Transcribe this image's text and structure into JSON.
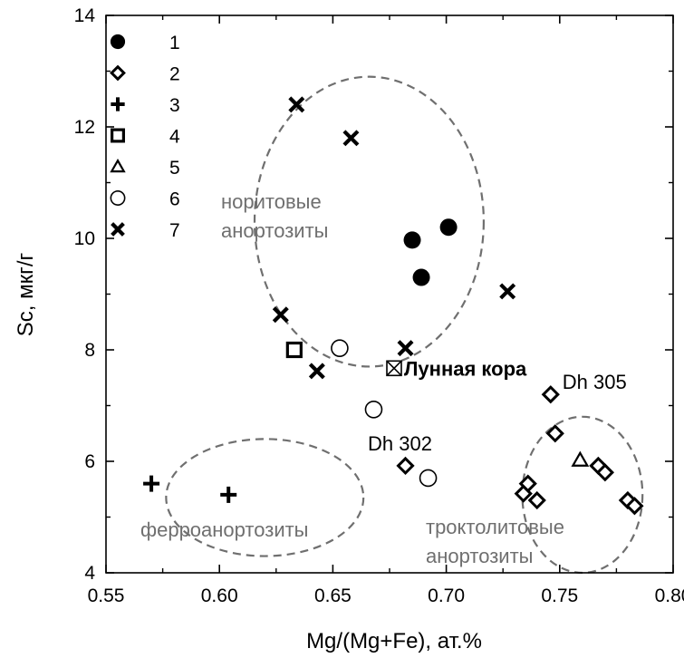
{
  "chart_data": {
    "type": "scatter",
    "xlabel": "Mg/(Mg+Fe), ат.%",
    "ylabel": "Sc, мкг/г",
    "xlim": [
      0.55,
      0.8
    ],
    "ylim": [
      4,
      14
    ],
    "xticks": [
      "0.55",
      "0.60",
      "0.65",
      "0.70",
      "0.75",
      "0.80"
    ],
    "yticks": [
      "4",
      "6",
      "8",
      "10",
      "12",
      "14"
    ],
    "grid": false,
    "legend_position": "top-left",
    "series": [
      {
        "name": "1",
        "marker": "filled-circle",
        "points": [
          [
            0.685,
            9.97
          ],
          [
            0.701,
            10.2
          ],
          [
            0.689,
            9.3
          ]
        ]
      },
      {
        "name": "2",
        "marker": "diamond",
        "points": [
          [
            0.746,
            7.2
          ],
          [
            0.748,
            6.5
          ],
          [
            0.682,
            5.92
          ],
          [
            0.736,
            5.6
          ],
          [
            0.734,
            5.42
          ],
          [
            0.74,
            5.3
          ],
          [
            0.767,
            5.92
          ],
          [
            0.77,
            5.8
          ],
          [
            0.78,
            5.3
          ],
          [
            0.783,
            5.2
          ]
        ]
      },
      {
        "name": "3",
        "marker": "plus",
        "points": [
          [
            0.57,
            5.6
          ],
          [
            0.604,
            5.4
          ]
        ]
      },
      {
        "name": "4",
        "marker": "square",
        "points": [
          [
            0.633,
            8.0
          ]
        ]
      },
      {
        "name": "5",
        "marker": "triangle",
        "points": [
          [
            0.759,
            6.02
          ]
        ]
      },
      {
        "name": "6",
        "marker": "open-circle",
        "points": [
          [
            0.653,
            8.03
          ],
          [
            0.668,
            6.93
          ],
          [
            0.692,
            5.7
          ]
        ]
      },
      {
        "name": "7",
        "marker": "x",
        "points": [
          [
            0.634,
            12.4
          ],
          [
            0.658,
            11.8
          ],
          [
            0.627,
            8.63
          ],
          [
            0.643,
            7.62
          ],
          [
            0.682,
            8.03
          ],
          [
            0.727,
            9.05
          ]
        ]
      }
    ],
    "special_point": {
      "label": "Лунная кора",
      "x": 0.677,
      "y": 7.67,
      "marker": "crossed-square"
    },
    "point_labels": [
      {
        "text": "Dh 305",
        "x": 0.746,
        "y": 7.2
      },
      {
        "text": "Dh 302",
        "x": 0.682,
        "y": 5.92
      }
    ],
    "regions": [
      {
        "label_lines": [
          "норитовые",
          "анортозиты"
        ],
        "cx": 0.666,
        "cy": 10.3,
        "rx": 0.0505,
        "ry": 2.6
      },
      {
        "label_lines": [
          "ферроанортозиты"
        ],
        "cx": 0.62,
        "cy": 5.35,
        "rx": 0.0435,
        "ry": 1.05
      },
      {
        "label_lines": [
          "троктолитовые",
          "анортозиты"
        ],
        "cx": 0.76,
        "cy": 5.4,
        "rx": 0.0265,
        "ry": 1.4
      }
    ]
  }
}
